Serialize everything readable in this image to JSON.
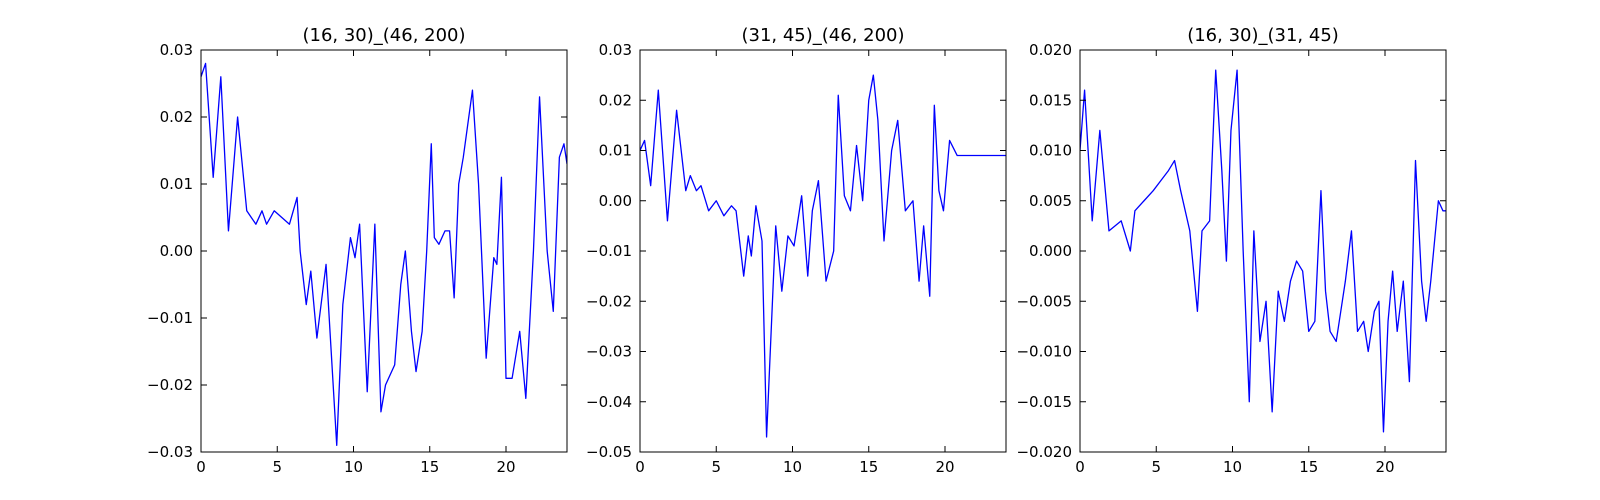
{
  "figure": {
    "background": "#ffffff",
    "line_color": "#0000ff"
  },
  "chart_data": [
    {
      "type": "line",
      "title": "(16, 30)_(46, 200)",
      "xlabel": "",
      "ylabel": "",
      "xlim": [
        0,
        24
      ],
      "ylim": [
        -0.03,
        0.03
      ],
      "xticks": [
        0,
        5,
        10,
        15,
        20
      ],
      "xtick_labels": [
        "0",
        "5",
        "10",
        "15",
        "20"
      ],
      "yticks": [
        -0.03,
        -0.02,
        -0.01,
        0.0,
        0.01,
        0.02,
        0.03
      ],
      "ytick_labels": [
        "−0.03",
        "−0.02",
        "−0.01",
        "0.00",
        "0.01",
        "0.02",
        "0.03"
      ],
      "grid": false,
      "legend": false,
      "series": [
        {
          "color": "#0000ff",
          "x": [
            0,
            0.3,
            0.8,
            1.3,
            1.8,
            2.4,
            3.0,
            3.3,
            3.6,
            4.0,
            4.3,
            4.8,
            5.3,
            5.8,
            6.3,
            6.5,
            6.9,
            7.2,
            7.6,
            8.2,
            8.9,
            9.3,
            9.8,
            10.1,
            10.4,
            10.9,
            11.4,
            11.8,
            12.1,
            12.7,
            13.1,
            13.4,
            13.8,
            14.1,
            14.5,
            14.8,
            15.1,
            15.3,
            15.6,
            16.0,
            16.3,
            16.6,
            16.9,
            17.2,
            17.8,
            18.2,
            18.7,
            19.2,
            19.4,
            19.7,
            20.0,
            20.4,
            20.9,
            21.3,
            21.8,
            22.2,
            22.7,
            23.1,
            23.5,
            23.8,
            24.0
          ],
          "y": [
            0.026,
            0.028,
            0.011,
            0.026,
            0.003,
            0.02,
            0.006,
            0.005,
            0.004,
            0.006,
            0.004,
            0.006,
            0.005,
            0.004,
            0.008,
            0.0,
            -0.008,
            -0.003,
            -0.013,
            -0.002,
            -0.029,
            -0.008,
            0.002,
            -0.001,
            0.004,
            -0.021,
            0.004,
            -0.024,
            -0.02,
            -0.017,
            -0.005,
            0.0,
            -0.012,
            -0.018,
            -0.012,
            0.0,
            0.016,
            0.002,
            0.001,
            0.003,
            0.003,
            -0.007,
            0.01,
            0.014,
            0.024,
            0.01,
            -0.016,
            -0.001,
            -0.002,
            0.011,
            -0.019,
            -0.019,
            -0.012,
            -0.022,
            0.0,
            0.023,
            0.0,
            -0.009,
            0.014,
            0.016,
            0.013
          ]
        }
      ]
    },
    {
      "type": "line",
      "title": "(31, 45)_(46, 200)",
      "xlabel": "",
      "ylabel": "",
      "xlim": [
        0,
        24
      ],
      "ylim": [
        -0.05,
        0.03
      ],
      "xticks": [
        0,
        5,
        10,
        15,
        20
      ],
      "xtick_labels": [
        "0",
        "5",
        "10",
        "15",
        "20"
      ],
      "yticks": [
        -0.05,
        -0.04,
        -0.03,
        -0.02,
        -0.01,
        0.0,
        0.01,
        0.02,
        0.03
      ],
      "ytick_labels": [
        "−0.05",
        "−0.04",
        "−0.03",
        "−0.02",
        "−0.01",
        "0.00",
        "0.01",
        "0.02",
        "0.03"
      ],
      "grid": false,
      "legend": false,
      "series": [
        {
          "color": "#0000ff",
          "x": [
            0,
            0.3,
            0.7,
            1.2,
            1.8,
            2.4,
            3.0,
            3.3,
            3.7,
            4.0,
            4.5,
            5.0,
            5.5,
            6.0,
            6.3,
            6.8,
            7.1,
            7.3,
            7.6,
            8.0,
            8.3,
            8.9,
            9.3,
            9.7,
            10.1,
            10.6,
            11.0,
            11.3,
            11.7,
            12.2,
            12.7,
            13.0,
            13.4,
            13.8,
            14.2,
            14.6,
            15.0,
            15.3,
            15.6,
            16.0,
            16.5,
            16.9,
            17.4,
            17.9,
            18.3,
            18.6,
            19.0,
            19.3,
            19.6,
            19.9,
            20.3,
            20.8,
            21.2,
            21.6,
            21.9,
            22.4,
            22.8,
            23.2,
            23.6,
            23.9,
            24.0
          ],
          "y": [
            0.01,
            0.012,
            0.003,
            0.022,
            -0.004,
            0.018,
            0.002,
            0.005,
            0.002,
            0.003,
            -0.002,
            0.0,
            -0.003,
            -0.001,
            -0.002,
            -0.015,
            -0.007,
            -0.011,
            -0.001,
            -0.008,
            -0.047,
            -0.005,
            -0.018,
            -0.007,
            -0.009,
            0.001,
            -0.015,
            -0.002,
            0.004,
            -0.016,
            -0.01,
            0.021,
            0.001,
            -0.002,
            0.011,
            0.0,
            0.02,
            0.025,
            0.016,
            -0.008,
            0.01,
            0.016,
            -0.002,
            0.0,
            -0.016,
            -0.005,
            -0.019,
            0.019,
            0.002,
            -0.002,
            0.012,
            0.009,
            0.009,
            0.009,
            0.009,
            0.009,
            0.009,
            0.009,
            0.009,
            0.009,
            0.009
          ]
        }
      ]
    },
    {
      "type": "line",
      "title": "(16, 30)_(31, 45)",
      "xlabel": "",
      "ylabel": "",
      "xlim": [
        0,
        24
      ],
      "ylim": [
        -0.02,
        0.02
      ],
      "xticks": [
        0,
        5,
        10,
        15,
        20
      ],
      "xtick_labels": [
        "0",
        "5",
        "10",
        "15",
        "20"
      ],
      "yticks": [
        -0.02,
        -0.015,
        -0.01,
        -0.005,
        0.0,
        0.005,
        0.01,
        0.015,
        0.02
      ],
      "ytick_labels": [
        "−0.020",
        "−0.015",
        "−0.010",
        "−0.005",
        "0.000",
        "0.005",
        "0.010",
        "0.015",
        "0.020"
      ],
      "grid": false,
      "legend": false,
      "series": [
        {
          "color": "#0000ff",
          "x": [
            0,
            0.3,
            0.8,
            1.3,
            1.9,
            2.7,
            3.3,
            3.6,
            4.2,
            4.8,
            5.3,
            5.8,
            6.2,
            6.6,
            7.2,
            7.7,
            8.0,
            8.5,
            8.9,
            9.3,
            9.6,
            9.9,
            10.3,
            10.7,
            11.1,
            11.4,
            11.8,
            12.2,
            12.6,
            13.0,
            13.4,
            13.8,
            14.2,
            14.6,
            15.0,
            15.4,
            15.8,
            16.1,
            16.4,
            16.8,
            17.1,
            17.4,
            17.8,
            18.2,
            18.6,
            18.9,
            19.3,
            19.6,
            19.9,
            20.2,
            20.5,
            20.8,
            21.2,
            21.6,
            22.0,
            22.4,
            22.7,
            23.0,
            23.5,
            23.8,
            24.0
          ],
          "y": [
            0.01,
            0.016,
            0.003,
            0.012,
            0.002,
            0.003,
            0.0,
            0.004,
            0.005,
            0.006,
            0.007,
            0.008,
            0.009,
            0.006,
            0.002,
            -0.006,
            0.002,
            0.003,
            0.018,
            0.008,
            -0.001,
            0.012,
            0.018,
            0.0,
            -0.015,
            0.002,
            -0.009,
            -0.005,
            -0.016,
            -0.004,
            -0.007,
            -0.003,
            -0.001,
            -0.002,
            -0.008,
            -0.007,
            0.006,
            -0.004,
            -0.008,
            -0.009,
            -0.006,
            -0.003,
            0.002,
            -0.008,
            -0.007,
            -0.01,
            -0.006,
            -0.005,
            -0.018,
            -0.007,
            -0.002,
            -0.008,
            -0.003,
            -0.013,
            0.009,
            -0.003,
            -0.007,
            -0.003,
            0.005,
            0.004,
            0.004
          ]
        }
      ]
    }
  ]
}
